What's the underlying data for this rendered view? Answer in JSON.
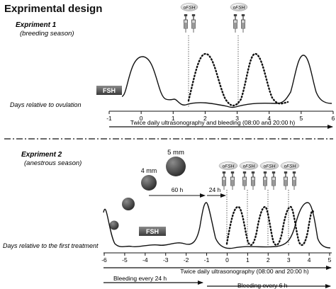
{
  "title": "Exprimental design",
  "experiment1": {
    "heading": "Expriment 1",
    "season": "(breeding season)",
    "fsh_label": "FSH",
    "injection_label": "oFSH",
    "axis_label": "Days relative to ovulation",
    "ticks": [
      "-1",
      "0",
      "1",
      "2",
      "3",
      "4",
      "5",
      "6"
    ],
    "arrow_text": "Twice daily ultrasonography and bleeding (08:00 and 20:00 h)",
    "injection_days": [
      1.5,
      3.0
    ]
  },
  "experiment2": {
    "heading": "Expriment 2",
    "season": "(anestrous season)",
    "fsh_label": "FSH",
    "injection_label": "oFSH",
    "follicle_4mm": "4 mm",
    "follicle_5mm": "5 mm",
    "interval_60h": "60 h",
    "interval_24h": "24 h",
    "axis_label": "Days relative to the first treatment",
    "ticks": [
      "-6",
      "-5",
      "-4",
      "-3",
      "-2",
      "-1",
      "0",
      "1",
      "2",
      "3",
      "4",
      "5"
    ],
    "arrow_text": "Twice daily ultrasonography (08:00 and 20:00 h)",
    "bleeding_24h": "Bleeding every 24 h",
    "bleeding_6h": "Bleeding every 6 h",
    "injection_days": [
      0,
      1,
      2,
      3
    ]
  }
}
